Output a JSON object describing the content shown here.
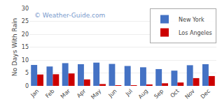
{
  "chart_data": {
    "type": "bar",
    "ylabel": "No Days With Rain",
    "categories": [
      "Jan",
      "Feb",
      "Mar",
      "Apr",
      "May",
      "Jun",
      "Jul",
      "Aug",
      "Sep",
      "Oct",
      "Nov",
      "Dec"
    ],
    "series": [
      {
        "name": "New York",
        "color": "#4472C4",
        "values": [
          8.1,
          7.5,
          8.8,
          8.4,
          9.0,
          8.5,
          7.7,
          7.2,
          6.5,
          5.9,
          8.0,
          8.4
        ]
      },
      {
        "name": "Los Angeles",
        "color": "#CC0000",
        "values": [
          4.4,
          4.5,
          4.8,
          2.5,
          0.7,
          0.2,
          0.1,
          0.5,
          1.0,
          1.3,
          3.0,
          3.8
        ]
      }
    ],
    "ylim": [
      0,
      30
    ],
    "yticks": [
      0,
      5,
      10,
      15,
      20,
      25,
      30
    ],
    "grid": true,
    "legend": "upper right",
    "annotations": [
      {
        "text": "© Weather-Guide.com"
      }
    ]
  }
}
